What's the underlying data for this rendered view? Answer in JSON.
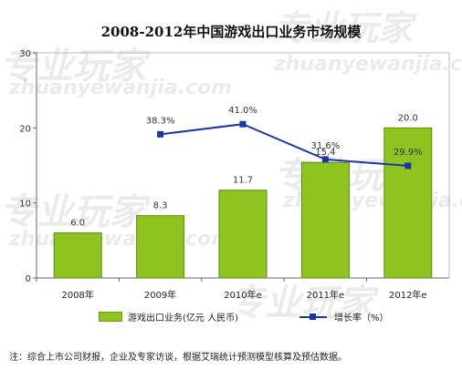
{
  "watermark": {
    "cjk": "专业玩家",
    "latin": "zhuanyewanjia.com"
  },
  "note": "注：综合上市公司财报，企业及专家访谈，根据艾瑞统计预测模型核算及预估数据。",
  "colors": {
    "bar": "#8fc31f",
    "line": "#1a35a8"
  },
  "chart_data": {
    "type": "bar",
    "title": "2008-2012年中国游戏出口业务市场规模",
    "categories": [
      "2008年",
      "2009年",
      "2010年e",
      "2011年e",
      "2012年e"
    ],
    "series": [
      {
        "name": "游戏出口业务(亿元 人民币)",
        "type": "bar",
        "values": [
          6.0,
          8.3,
          11.7,
          15.4,
          20.0
        ],
        "labels": [
          "6.0",
          "8.3",
          "11.7",
          "15.4",
          "20.0"
        ]
      },
      {
        "name": "增长率（%）",
        "type": "line",
        "values": [
          null,
          38.3,
          41.0,
          31.6,
          29.9
        ],
        "labels": [
          "",
          "38.3%",
          "41.0%",
          "31.6%",
          "29.9%"
        ]
      }
    ],
    "y_ticks": [
      "0",
      "10",
      "20",
      "30"
    ],
    "ylim": [
      0,
      30
    ],
    "y2lim": [
      0,
      60
    ],
    "grid": false,
    "legend_position": "bottom"
  }
}
